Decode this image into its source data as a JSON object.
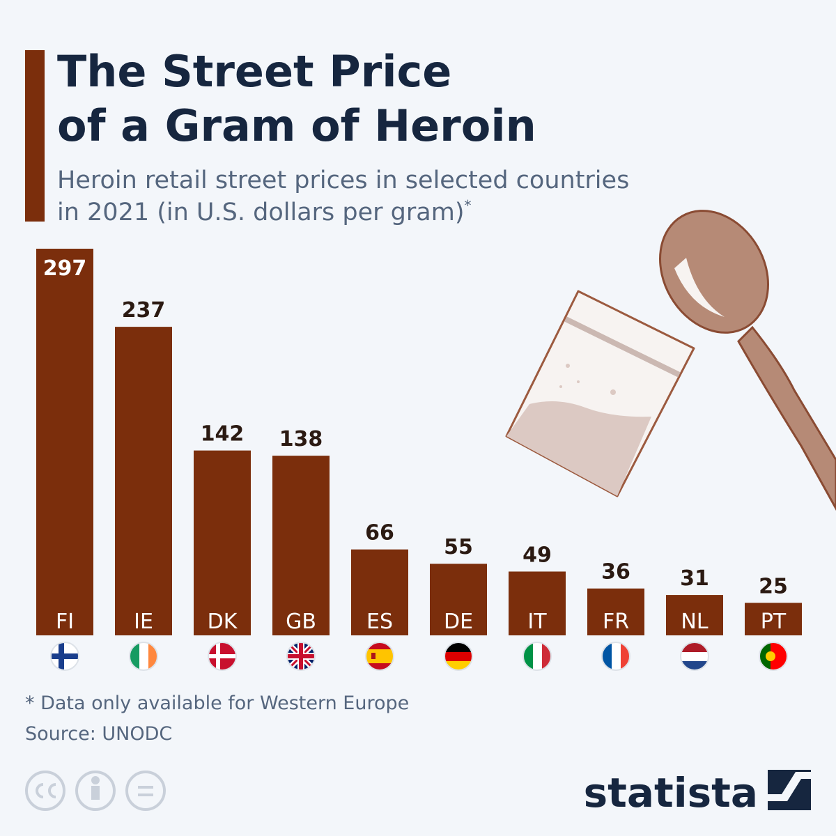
{
  "chart_data": {
    "type": "bar",
    "title": [
      "The Street Price",
      "of a Gram of Heroin"
    ],
    "subtitle": [
      "Heroin retail street prices in selected countries",
      "in 2021 (in U.S. dollars per gram)"
    ],
    "subtitle_mark": "*",
    "categories": [
      "FI",
      "IE",
      "DK",
      "GB",
      "ES",
      "DE",
      "IT",
      "FR",
      "NL",
      "PT"
    ],
    "values": [
      297,
      237,
      142,
      138,
      66,
      55,
      49,
      36,
      31,
      25
    ],
    "color": "#7b2e0c",
    "footnote": "* Data only available for Western Europe",
    "source": "Source: UNODC",
    "brand": "statista"
  }
}
